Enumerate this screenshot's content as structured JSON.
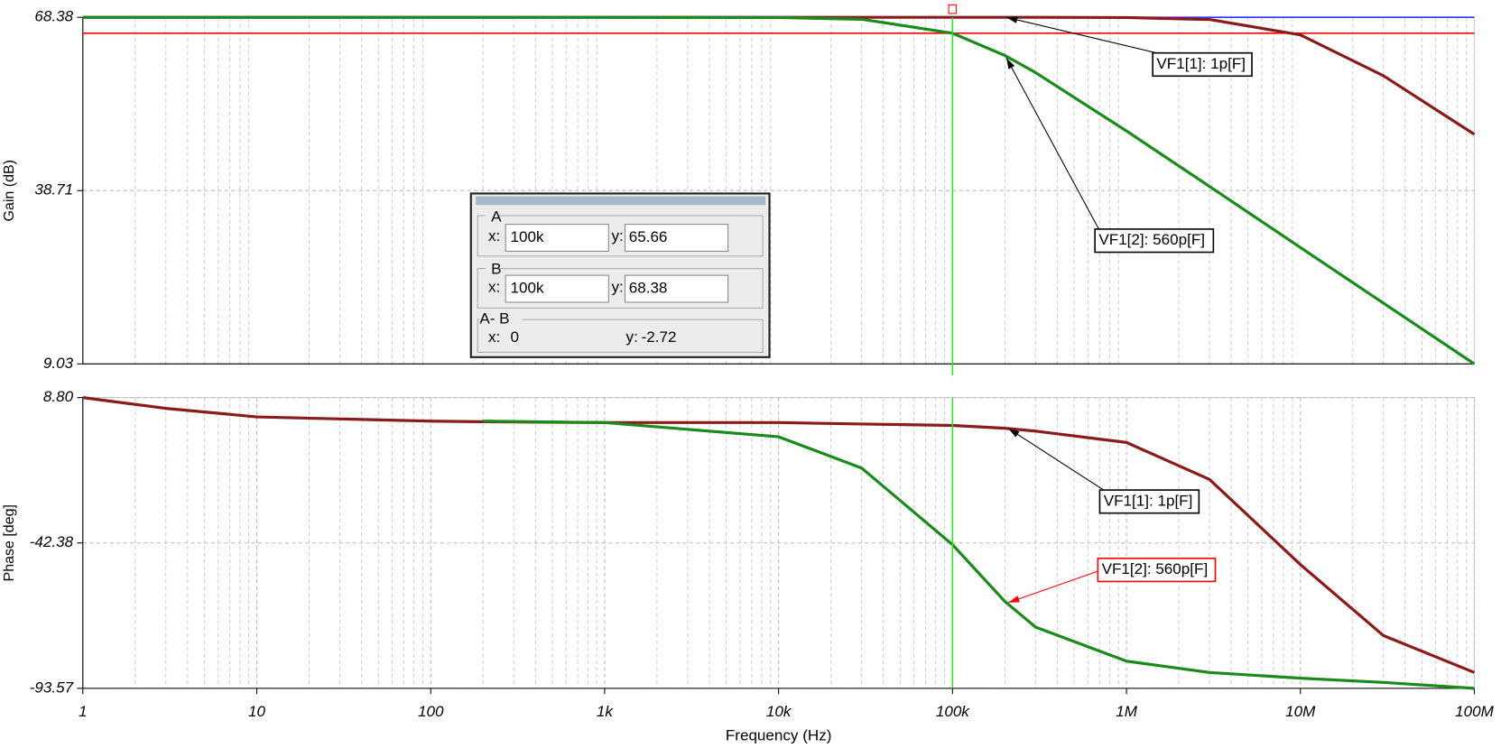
{
  "chart_data": [
    {
      "type": "line",
      "ylabel": "Gain (dB)",
      "xscale": "log",
      "xlim": [
        1,
        100000000
      ],
      "ylim": [
        9.03,
        68.38
      ],
      "yticks": [
        9.03,
        38.71,
        68.38
      ],
      "grid": true,
      "x": [
        1,
        3,
        10,
        100,
        200,
        1000,
        10000,
        30000,
        100000,
        200000,
        300000,
        1000000,
        3000000,
        10000000,
        30000000,
        100000000
      ],
      "series": [
        {
          "name": "VF1[1]: 1p[F]",
          "color": "#8b1a1a",
          "label_color": "#000000",
          "values": [
            68.38,
            68.38,
            68.38,
            68.38,
            68.38,
            68.38,
            68.38,
            68.38,
            68.38,
            68.38,
            68.38,
            68.34,
            68.01,
            65.37,
            58.38,
            48.34
          ]
        },
        {
          "name": "VF1[2]: 560p[F]",
          "color": "#1a8a1a",
          "label_color": "#000000",
          "values": [
            68.38,
            68.38,
            68.38,
            68.38,
            68.38,
            68.38,
            68.34,
            68.05,
            65.66,
            61.85,
            58.92,
            48.92,
            39.43,
            28.96,
            19.44,
            9.03
          ]
        }
      ],
      "cursor": {
        "x_label": "x:",
        "y_label": "y:",
        "a": {
          "label": "A",
          "x": {
            "value": 100000,
            "label": "100k"
          },
          "y": 65.66,
          "color": "#ff0000"
        },
        "b": {
          "label": "B",
          "x": {
            "value": 100000,
            "label": "100k"
          },
          "y": 68.38,
          "color": "#3030ff"
        },
        "diff": {
          "label": "A- B",
          "x": 0,
          "y": -2.72
        },
        "line_color": "#33dd33"
      }
    },
    {
      "type": "line",
      "ylabel": "Phase [deg]",
      "xlabel": "Frequency (Hz)",
      "xscale": "log",
      "xlim": [
        1,
        100000000
      ],
      "ylim": [
        -93.57,
        8.8
      ],
      "yticks": [
        -93.57,
        -42.38,
        {
          "value": 8.8,
          "label": "8.80"
        }
      ],
      "grid": true,
      "xticks": [
        1,
        10,
        100,
        {
          "value": 1000,
          "label": "1k"
        },
        {
          "value": 10000,
          "label": "10k"
        },
        {
          "value": 100000,
          "label": "100k"
        },
        {
          "value": 1000000,
          "label": "1M"
        },
        {
          "value": 10000000,
          "label": "10M"
        },
        {
          "value": 100000000,
          "label": "100M"
        }
      ],
      "x": [
        1,
        3,
        10,
        100,
        200,
        1000,
        10000,
        30000,
        100000,
        200000,
        300000,
        1000000,
        3000000,
        10000000,
        30000000,
        100000000
      ],
      "series": [
        {
          "name": "VF1[1]: 1p[F]",
          "color": "#8b1a1a",
          "label_color": "#000000",
          "values": [
            8.8,
            5,
            2,
            0.5,
            0.3,
            0,
            0,
            -0.5,
            -1,
            -2,
            -3,
            -7,
            -20,
            -50,
            -75,
            -88
          ]
        },
        {
          "name": "VF1[2]: 560p[F]",
          "color": "#1a8a1a",
          "label_color": "#ff0000",
          "values": [
            null,
            null,
            null,
            null,
            0.5,
            0,
            -5,
            -16,
            -43,
            -63,
            -72,
            -84,
            -88,
            -90,
            -91.5,
            -93.57
          ]
        }
      ]
    }
  ]
}
